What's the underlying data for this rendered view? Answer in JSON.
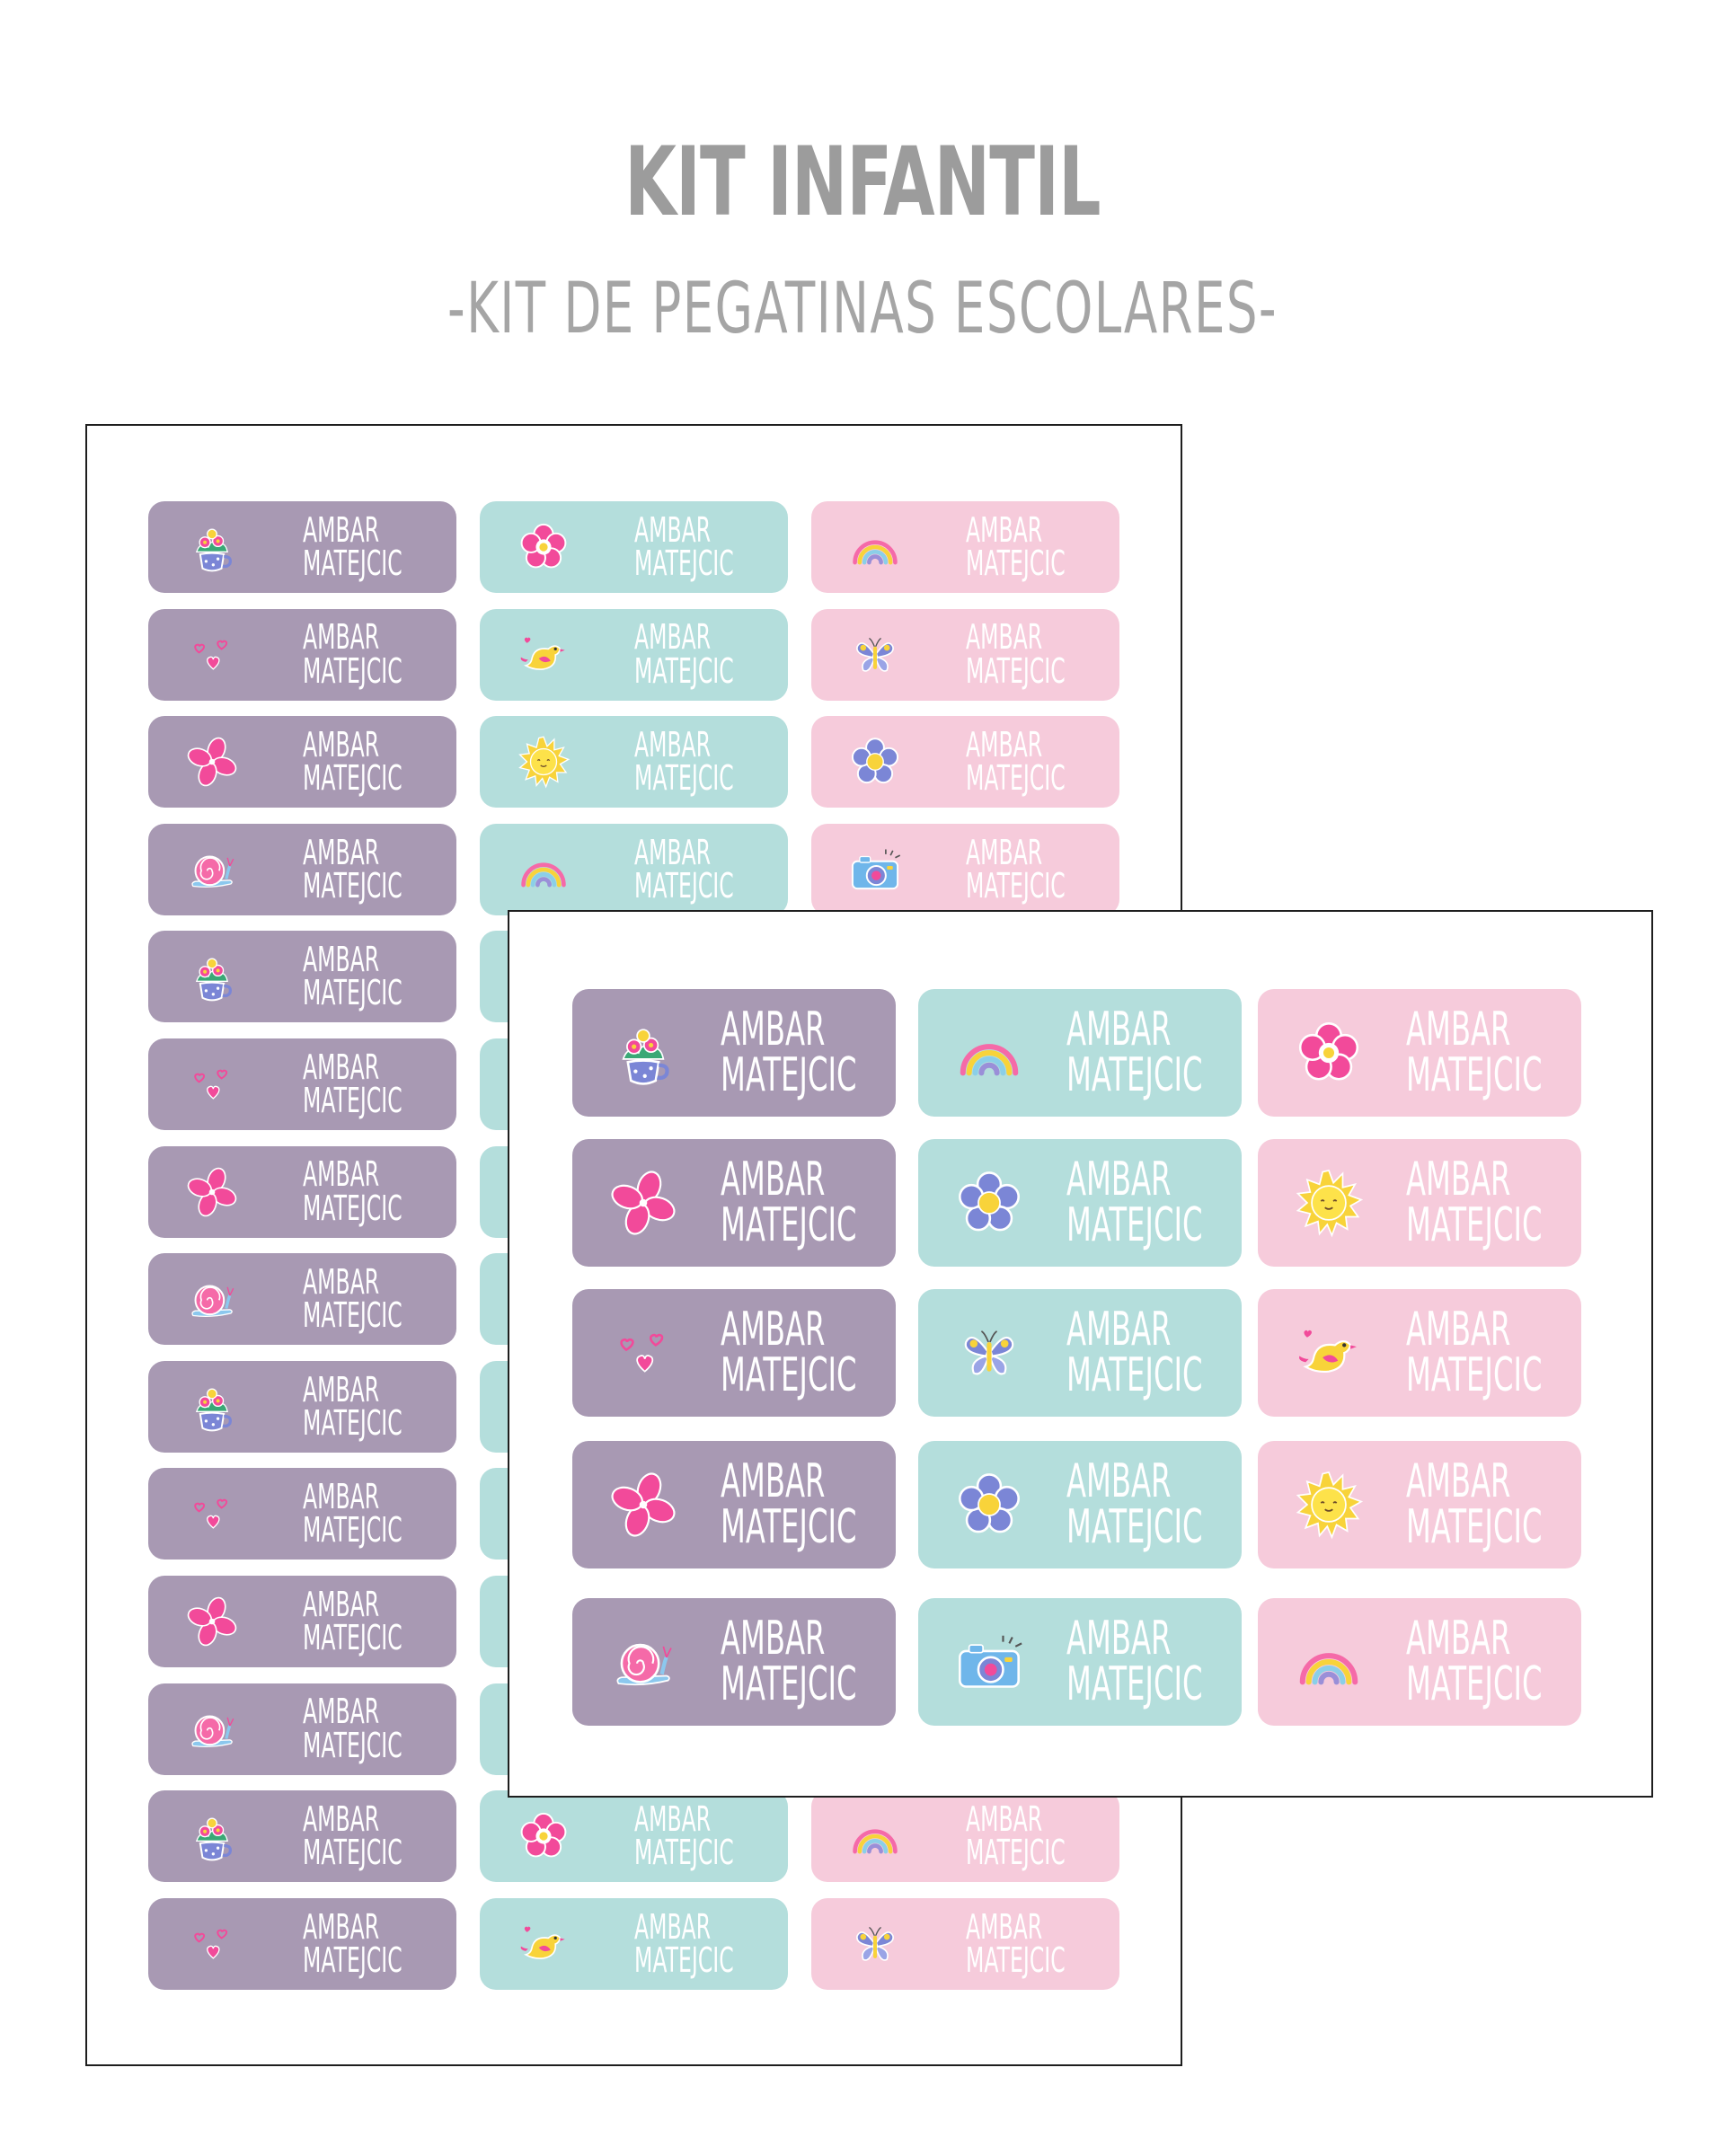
{
  "header": {
    "title": "KIT INFANTIL",
    "subtitle": "-KIT DE PEGATINAS ESCOLARES-"
  },
  "colors": {
    "purple": "#a899b3",
    "mint": "#b4dedc",
    "pink": "#f6cbdb"
  },
  "label_text": {
    "first": "AMBAR",
    "last": "MATEJCIC"
  },
  "back_sheet": {
    "rows": [
      [
        "teacup-flowers-icon",
        "pink-flower-icon",
        "rainbow-icon"
      ],
      [
        "hearts-icon",
        "bird-icon",
        "butterfly-icon"
      ],
      [
        "pinwheel-flower-icon",
        "sun-icon",
        "blue-flower-icon"
      ],
      [
        "snail-icon",
        "rainbow-icon",
        "camera-icon"
      ],
      [
        "teacup-flowers-icon",
        "",
        ""
      ],
      [
        "hearts-icon",
        "",
        ""
      ],
      [
        "pinwheel-flower-icon",
        "",
        ""
      ],
      [
        "snail-icon",
        "",
        ""
      ],
      [
        "teacup-flowers-icon",
        "",
        ""
      ],
      [
        "hearts-icon",
        "",
        ""
      ],
      [
        "pinwheel-flower-icon",
        "",
        ""
      ],
      [
        "snail-icon",
        "",
        ""
      ],
      [
        "teacup-flowers-icon",
        "pink-flower-icon",
        "rainbow-icon"
      ],
      [
        "hearts-icon",
        "bird-icon",
        "butterfly-icon"
      ]
    ]
  },
  "front_sheet": {
    "rows": [
      [
        "teacup-flowers-icon",
        "rainbow-icon",
        "pink-flower-icon"
      ],
      [
        "pinwheel-flower-icon",
        "blue-flower-icon",
        "sun-icon"
      ],
      [
        "hearts-icon",
        "butterfly-icon",
        "bird-icon"
      ],
      [
        "pinwheel-flower-icon",
        "blue-flower-icon",
        "sun-icon"
      ],
      [
        "snail-icon",
        "camera-icon",
        "rainbow-icon"
      ]
    ]
  }
}
